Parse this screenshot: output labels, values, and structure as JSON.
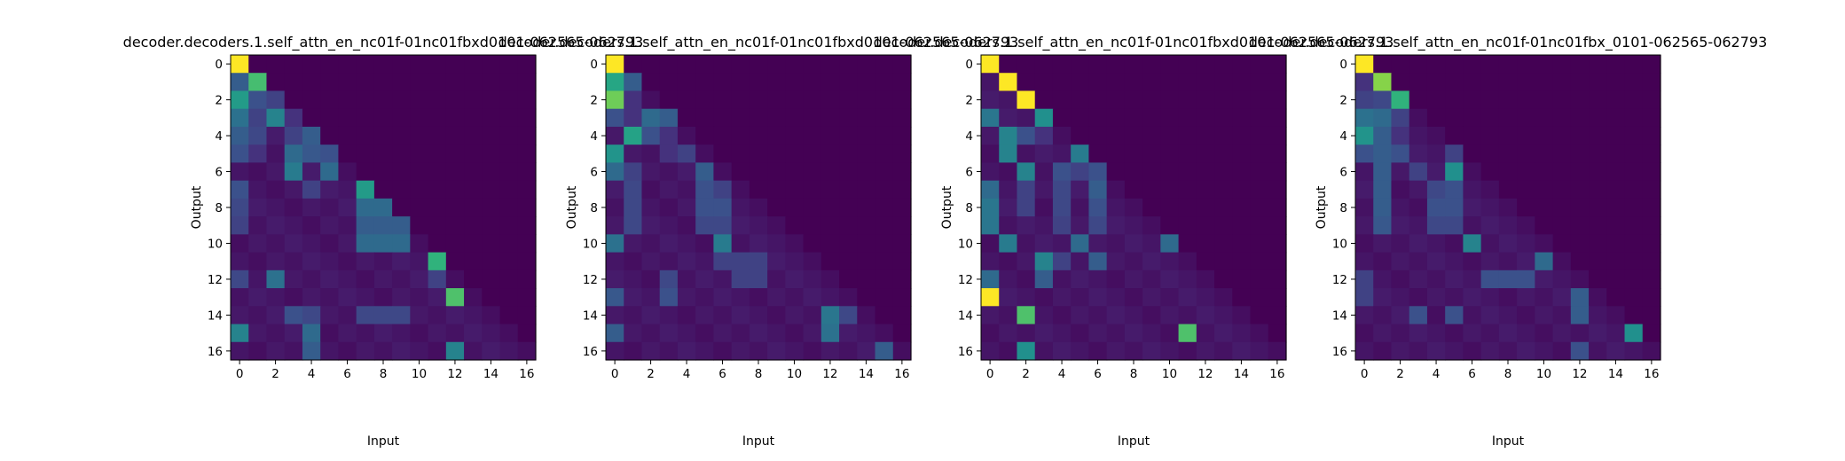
{
  "figure": {
    "colormap": "viridis",
    "background": "#ffffff"
  },
  "chart_data": [
    {
      "type": "heatmap",
      "title": "decoder.decoders.1.self_attn_en_nc01f-01nc01fbxd0101-062565-062793",
      "xlabel": "Input",
      "ylabel": "Output",
      "x_ticks": [
        0,
        2,
        4,
        6,
        8,
        10,
        12,
        14,
        16
      ],
      "y_ticks": [
        0,
        2,
        4,
        6,
        8,
        10,
        12,
        14,
        16
      ],
      "xlim": [
        -0.5,
        16.5
      ],
      "ylim": [
        16.5,
        -0.5
      ],
      "colorscale_range": [
        0,
        1
      ],
      "strong_cells": [
        {
          "row": 0,
          "col": 0,
          "value": 1.0
        },
        {
          "row": 1,
          "col": 0,
          "value": 0.3
        },
        {
          "row": 1,
          "col": 1,
          "value": 0.7
        },
        {
          "row": 2,
          "col": 0,
          "value": 0.55
        },
        {
          "row": 2,
          "col": 1,
          "value": 0.25
        },
        {
          "row": 2,
          "col": 2,
          "value": 0.2
        },
        {
          "row": 3,
          "col": 0,
          "value": 0.38
        },
        {
          "row": 3,
          "col": 1,
          "value": 0.2
        },
        {
          "row": 3,
          "col": 2,
          "value": 0.45
        },
        {
          "row": 3,
          "col": 3,
          "value": 0.15
        },
        {
          "row": 4,
          "col": 0,
          "value": 0.3
        },
        {
          "row": 4,
          "col": 1,
          "value": 0.22
        },
        {
          "row": 4,
          "col": 3,
          "value": 0.2
        },
        {
          "row": 4,
          "col": 4,
          "value": 0.3
        },
        {
          "row": 5,
          "col": 0,
          "value": 0.25
        },
        {
          "row": 5,
          "col": 1,
          "value": 0.15
        },
        {
          "row": 5,
          "col": 3,
          "value": 0.35
        },
        {
          "row": 5,
          "col": 4,
          "value": 0.28
        },
        {
          "row": 5,
          "col": 5,
          "value": 0.25
        },
        {
          "row": 6,
          "col": 3,
          "value": 0.42
        },
        {
          "row": 6,
          "col": 5,
          "value": 0.35
        },
        {
          "row": 7,
          "col": 0,
          "value": 0.25
        },
        {
          "row": 7,
          "col": 7,
          "value": 0.55
        },
        {
          "row": 7,
          "col": 4,
          "value": 0.2
        },
        {
          "row": 8,
          "col": 0,
          "value": 0.22
        },
        {
          "row": 8,
          "col": 7,
          "value": 0.35
        },
        {
          "row": 8,
          "col": 8,
          "value": 0.35
        },
        {
          "row": 9,
          "col": 0,
          "value": 0.2
        },
        {
          "row": 9,
          "col": 7,
          "value": 0.3
        },
        {
          "row": 9,
          "col": 8,
          "value": 0.3
        },
        {
          "row": 9,
          "col": 9,
          "value": 0.3
        },
        {
          "row": 10,
          "col": 7,
          "value": 0.35
        },
        {
          "row": 10,
          "col": 8,
          "value": 0.35
        },
        {
          "row": 10,
          "col": 9,
          "value": 0.35
        },
        {
          "row": 11,
          "col": 11,
          "value": 0.65
        },
        {
          "row": 12,
          "col": 0,
          "value": 0.22
        },
        {
          "row": 12,
          "col": 2,
          "value": 0.38
        },
        {
          "row": 12,
          "col": 11,
          "value": 0.2
        },
        {
          "row": 13,
          "col": 12,
          "value": 0.72
        },
        {
          "row": 14,
          "col": 3,
          "value": 0.25
        },
        {
          "row": 14,
          "col": 4,
          "value": 0.22
        },
        {
          "row": 14,
          "col": 7,
          "value": 0.22
        },
        {
          "row": 14,
          "col": 8,
          "value": 0.22
        },
        {
          "row": 14,
          "col": 9,
          "value": 0.22
        },
        {
          "row": 15,
          "col": 0,
          "value": 0.45
        },
        {
          "row": 15,
          "col": 4,
          "value": 0.35
        },
        {
          "row": 16,
          "col": 4,
          "value": 0.3
        },
        {
          "row": 16,
          "col": 12,
          "value": 0.45
        }
      ]
    },
    {
      "type": "heatmap",
      "title": "decoder.decoders.1.self_attn_en_nc01f-01nc01fbxd0101-062565-062793",
      "xlabel": "Input",
      "ylabel": "Output",
      "x_ticks": [
        0,
        2,
        4,
        6,
        8,
        10,
        12,
        14,
        16
      ],
      "y_ticks": [
        0,
        2,
        4,
        6,
        8,
        10,
        12,
        14,
        16
      ],
      "xlim": [
        -0.5,
        16.5
      ],
      "ylim": [
        16.5,
        -0.5
      ],
      "colorscale_range": [
        0,
        1
      ],
      "strong_cells": [
        {
          "row": 0,
          "col": 0,
          "value": 1.0
        },
        {
          "row": 1,
          "col": 0,
          "value": 0.6
        },
        {
          "row": 1,
          "col": 1,
          "value": 0.3
        },
        {
          "row": 2,
          "col": 0,
          "value": 0.78
        },
        {
          "row": 2,
          "col": 1,
          "value": 0.15
        },
        {
          "row": 3,
          "col": 0,
          "value": 0.25
        },
        {
          "row": 3,
          "col": 1,
          "value": 0.15
        },
        {
          "row": 3,
          "col": 2,
          "value": 0.35
        },
        {
          "row": 3,
          "col": 3,
          "value": 0.3
        },
        {
          "row": 4,
          "col": 1,
          "value": 0.58
        },
        {
          "row": 4,
          "col": 2,
          "value": 0.25
        },
        {
          "row": 4,
          "col": 3,
          "value": 0.15
        },
        {
          "row": 5,
          "col": 0,
          "value": 0.52
        },
        {
          "row": 5,
          "col": 3,
          "value": 0.15
        },
        {
          "row": 5,
          "col": 4,
          "value": 0.2
        },
        {
          "row": 6,
          "col": 0,
          "value": 0.35
        },
        {
          "row": 6,
          "col": 1,
          "value": 0.2
        },
        {
          "row": 6,
          "col": 5,
          "value": 0.3
        },
        {
          "row": 7,
          "col": 1,
          "value": 0.22
        },
        {
          "row": 7,
          "col": 5,
          "value": 0.25
        },
        {
          "row": 7,
          "col": 6,
          "value": 0.2
        },
        {
          "row": 8,
          "col": 1,
          "value": 0.22
        },
        {
          "row": 8,
          "col": 5,
          "value": 0.25
        },
        {
          "row": 8,
          "col": 6,
          "value": 0.25
        },
        {
          "row": 9,
          "col": 1,
          "value": 0.22
        },
        {
          "row": 9,
          "col": 5,
          "value": 0.22
        },
        {
          "row": 9,
          "col": 6,
          "value": 0.22
        },
        {
          "row": 10,
          "col": 0,
          "value": 0.38
        },
        {
          "row": 10,
          "col": 6,
          "value": 0.42
        },
        {
          "row": 11,
          "col": 6,
          "value": 0.2
        },
        {
          "row": 11,
          "col": 7,
          "value": 0.2
        },
        {
          "row": 11,
          "col": 8,
          "value": 0.2
        },
        {
          "row": 12,
          "col": 3,
          "value": 0.22
        },
        {
          "row": 12,
          "col": 7,
          "value": 0.2
        },
        {
          "row": 12,
          "col": 8,
          "value": 0.2
        },
        {
          "row": 13,
          "col": 0,
          "value": 0.28
        },
        {
          "row": 13,
          "col": 3,
          "value": 0.25
        },
        {
          "row": 14,
          "col": 12,
          "value": 0.4
        },
        {
          "row": 14,
          "col": 13,
          "value": 0.22
        },
        {
          "row": 15,
          "col": 0,
          "value": 0.3
        },
        {
          "row": 15,
          "col": 12,
          "value": 0.38
        },
        {
          "row": 16,
          "col": 15,
          "value": 0.3
        }
      ]
    },
    {
      "type": "heatmap",
      "title": "decoder.decoders.1.self_attn_en_nc01f-01nc01fbxd0101-062565-062793",
      "xlabel": "Input",
      "ylabel": "Output",
      "x_ticks": [
        0,
        2,
        4,
        6,
        8,
        10,
        12,
        14,
        16
      ],
      "y_ticks": [
        0,
        2,
        4,
        6,
        8,
        10,
        12,
        14,
        16
      ],
      "xlim": [
        -0.5,
        16.5
      ],
      "ylim": [
        16.5,
        -0.5
      ],
      "colorscale_range": [
        0,
        1
      ],
      "strong_cells": [
        {
          "row": 0,
          "col": 0,
          "value": 1.0
        },
        {
          "row": 1,
          "col": 1,
          "value": 1.0
        },
        {
          "row": 2,
          "col": 2,
          "value": 1.0
        },
        {
          "row": 3,
          "col": 0,
          "value": 0.4
        },
        {
          "row": 3,
          "col": 3,
          "value": 0.5
        },
        {
          "row": 4,
          "col": 1,
          "value": 0.45
        },
        {
          "row": 4,
          "col": 2,
          "value": 0.25
        },
        {
          "row": 4,
          "col": 3,
          "value": 0.15
        },
        {
          "row": 5,
          "col": 1,
          "value": 0.45
        },
        {
          "row": 5,
          "col": 5,
          "value": 0.42
        },
        {
          "row": 6,
          "col": 2,
          "value": 0.45
        },
        {
          "row": 6,
          "col": 4,
          "value": 0.25
        },
        {
          "row": 6,
          "col": 5,
          "value": 0.2
        },
        {
          "row": 6,
          "col": 6,
          "value": 0.25
        },
        {
          "row": 7,
          "col": 0,
          "value": 0.35
        },
        {
          "row": 7,
          "col": 2,
          "value": 0.2
        },
        {
          "row": 7,
          "col": 4,
          "value": 0.22
        },
        {
          "row": 7,
          "col": 6,
          "value": 0.3
        },
        {
          "row": 8,
          "col": 0,
          "value": 0.4
        },
        {
          "row": 8,
          "col": 2,
          "value": 0.2
        },
        {
          "row": 8,
          "col": 4,
          "value": 0.22
        },
        {
          "row": 8,
          "col": 6,
          "value": 0.25
        },
        {
          "row": 9,
          "col": 0,
          "value": 0.4
        },
        {
          "row": 9,
          "col": 4,
          "value": 0.2
        },
        {
          "row": 9,
          "col": 6,
          "value": 0.22
        },
        {
          "row": 10,
          "col": 1,
          "value": 0.42
        },
        {
          "row": 10,
          "col": 5,
          "value": 0.35
        },
        {
          "row": 10,
          "col": 10,
          "value": 0.35
        },
        {
          "row": 11,
          "col": 3,
          "value": 0.45
        },
        {
          "row": 11,
          "col": 4,
          "value": 0.2
        },
        {
          "row": 11,
          "col": 6,
          "value": 0.3
        },
        {
          "row": 12,
          "col": 0,
          "value": 0.35
        },
        {
          "row": 12,
          "col": 3,
          "value": 0.3
        },
        {
          "row": 13,
          "col": 0,
          "value": 1.0
        },
        {
          "row": 14,
          "col": 2,
          "value": 0.72
        },
        {
          "row": 15,
          "col": 11,
          "value": 0.72
        },
        {
          "row": 16,
          "col": 2,
          "value": 0.5
        }
      ]
    },
    {
      "type": "heatmap",
      "title": "decoder.decoders.1.self_attn_en_nc01f-01nc01fbx_0101-062565-062793",
      "xlabel": "Input",
      "ylabel": "Output",
      "x_ticks": [
        0,
        2,
        4,
        6,
        8,
        10,
        12,
        14,
        16
      ],
      "y_ticks": [
        0,
        2,
        4,
        6,
        8,
        10,
        12,
        14,
        16
      ],
      "xlim": [
        -0.5,
        16.5
      ],
      "ylim": [
        16.5,
        -0.5
      ],
      "colorscale_range": [
        0,
        1
      ],
      "strong_cells": [
        {
          "row": 0,
          "col": 0,
          "value": 1.0
        },
        {
          "row": 1,
          "col": 0,
          "value": 0.15
        },
        {
          "row": 1,
          "col": 1,
          "value": 0.82
        },
        {
          "row": 2,
          "col": 0,
          "value": 0.2
        },
        {
          "row": 2,
          "col": 1,
          "value": 0.22
        },
        {
          "row": 2,
          "col": 2,
          "value": 0.65
        },
        {
          "row": 3,
          "col": 0,
          "value": 0.38
        },
        {
          "row": 3,
          "col": 1,
          "value": 0.35
        },
        {
          "row": 3,
          "col": 2,
          "value": 0.2
        },
        {
          "row": 4,
          "col": 0,
          "value": 0.52
        },
        {
          "row": 4,
          "col": 1,
          "value": 0.3
        },
        {
          "row": 4,
          "col": 2,
          "value": 0.15
        },
        {
          "row": 5,
          "col": 0,
          "value": 0.25
        },
        {
          "row": 5,
          "col": 1,
          "value": 0.3
        },
        {
          "row": 5,
          "col": 2,
          "value": 0.25
        },
        {
          "row": 5,
          "col": 5,
          "value": 0.2
        },
        {
          "row": 6,
          "col": 1,
          "value": 0.3
        },
        {
          "row": 6,
          "col": 3,
          "value": 0.2
        },
        {
          "row": 6,
          "col": 5,
          "value": 0.5
        },
        {
          "row": 7,
          "col": 1,
          "value": 0.3
        },
        {
          "row": 7,
          "col": 4,
          "value": 0.22
        },
        {
          "row": 7,
          "col": 5,
          "value": 0.25
        },
        {
          "row": 8,
          "col": 1,
          "value": 0.3
        },
        {
          "row": 8,
          "col": 4,
          "value": 0.25
        },
        {
          "row": 8,
          "col": 5,
          "value": 0.25
        },
        {
          "row": 9,
          "col": 1,
          "value": 0.28
        },
        {
          "row": 9,
          "col": 4,
          "value": 0.22
        },
        {
          "row": 9,
          "col": 5,
          "value": 0.22
        },
        {
          "row": 10,
          "col": 6,
          "value": 0.45
        },
        {
          "row": 11,
          "col": 10,
          "value": 0.35
        },
        {
          "row": 12,
          "col": 0,
          "value": 0.2
        },
        {
          "row": 12,
          "col": 7,
          "value": 0.25
        },
        {
          "row": 12,
          "col": 8,
          "value": 0.25
        },
        {
          "row": 12,
          "col": 9,
          "value": 0.25
        },
        {
          "row": 13,
          "col": 0,
          "value": 0.2
        },
        {
          "row": 13,
          "col": 12,
          "value": 0.3
        },
        {
          "row": 14,
          "col": 3,
          "value": 0.25
        },
        {
          "row": 14,
          "col": 5,
          "value": 0.25
        },
        {
          "row": 14,
          "col": 12,
          "value": 0.3
        },
        {
          "row": 15,
          "col": 15,
          "value": 0.5
        },
        {
          "row": 16,
          "col": 12,
          "value": 0.25
        }
      ]
    }
  ]
}
